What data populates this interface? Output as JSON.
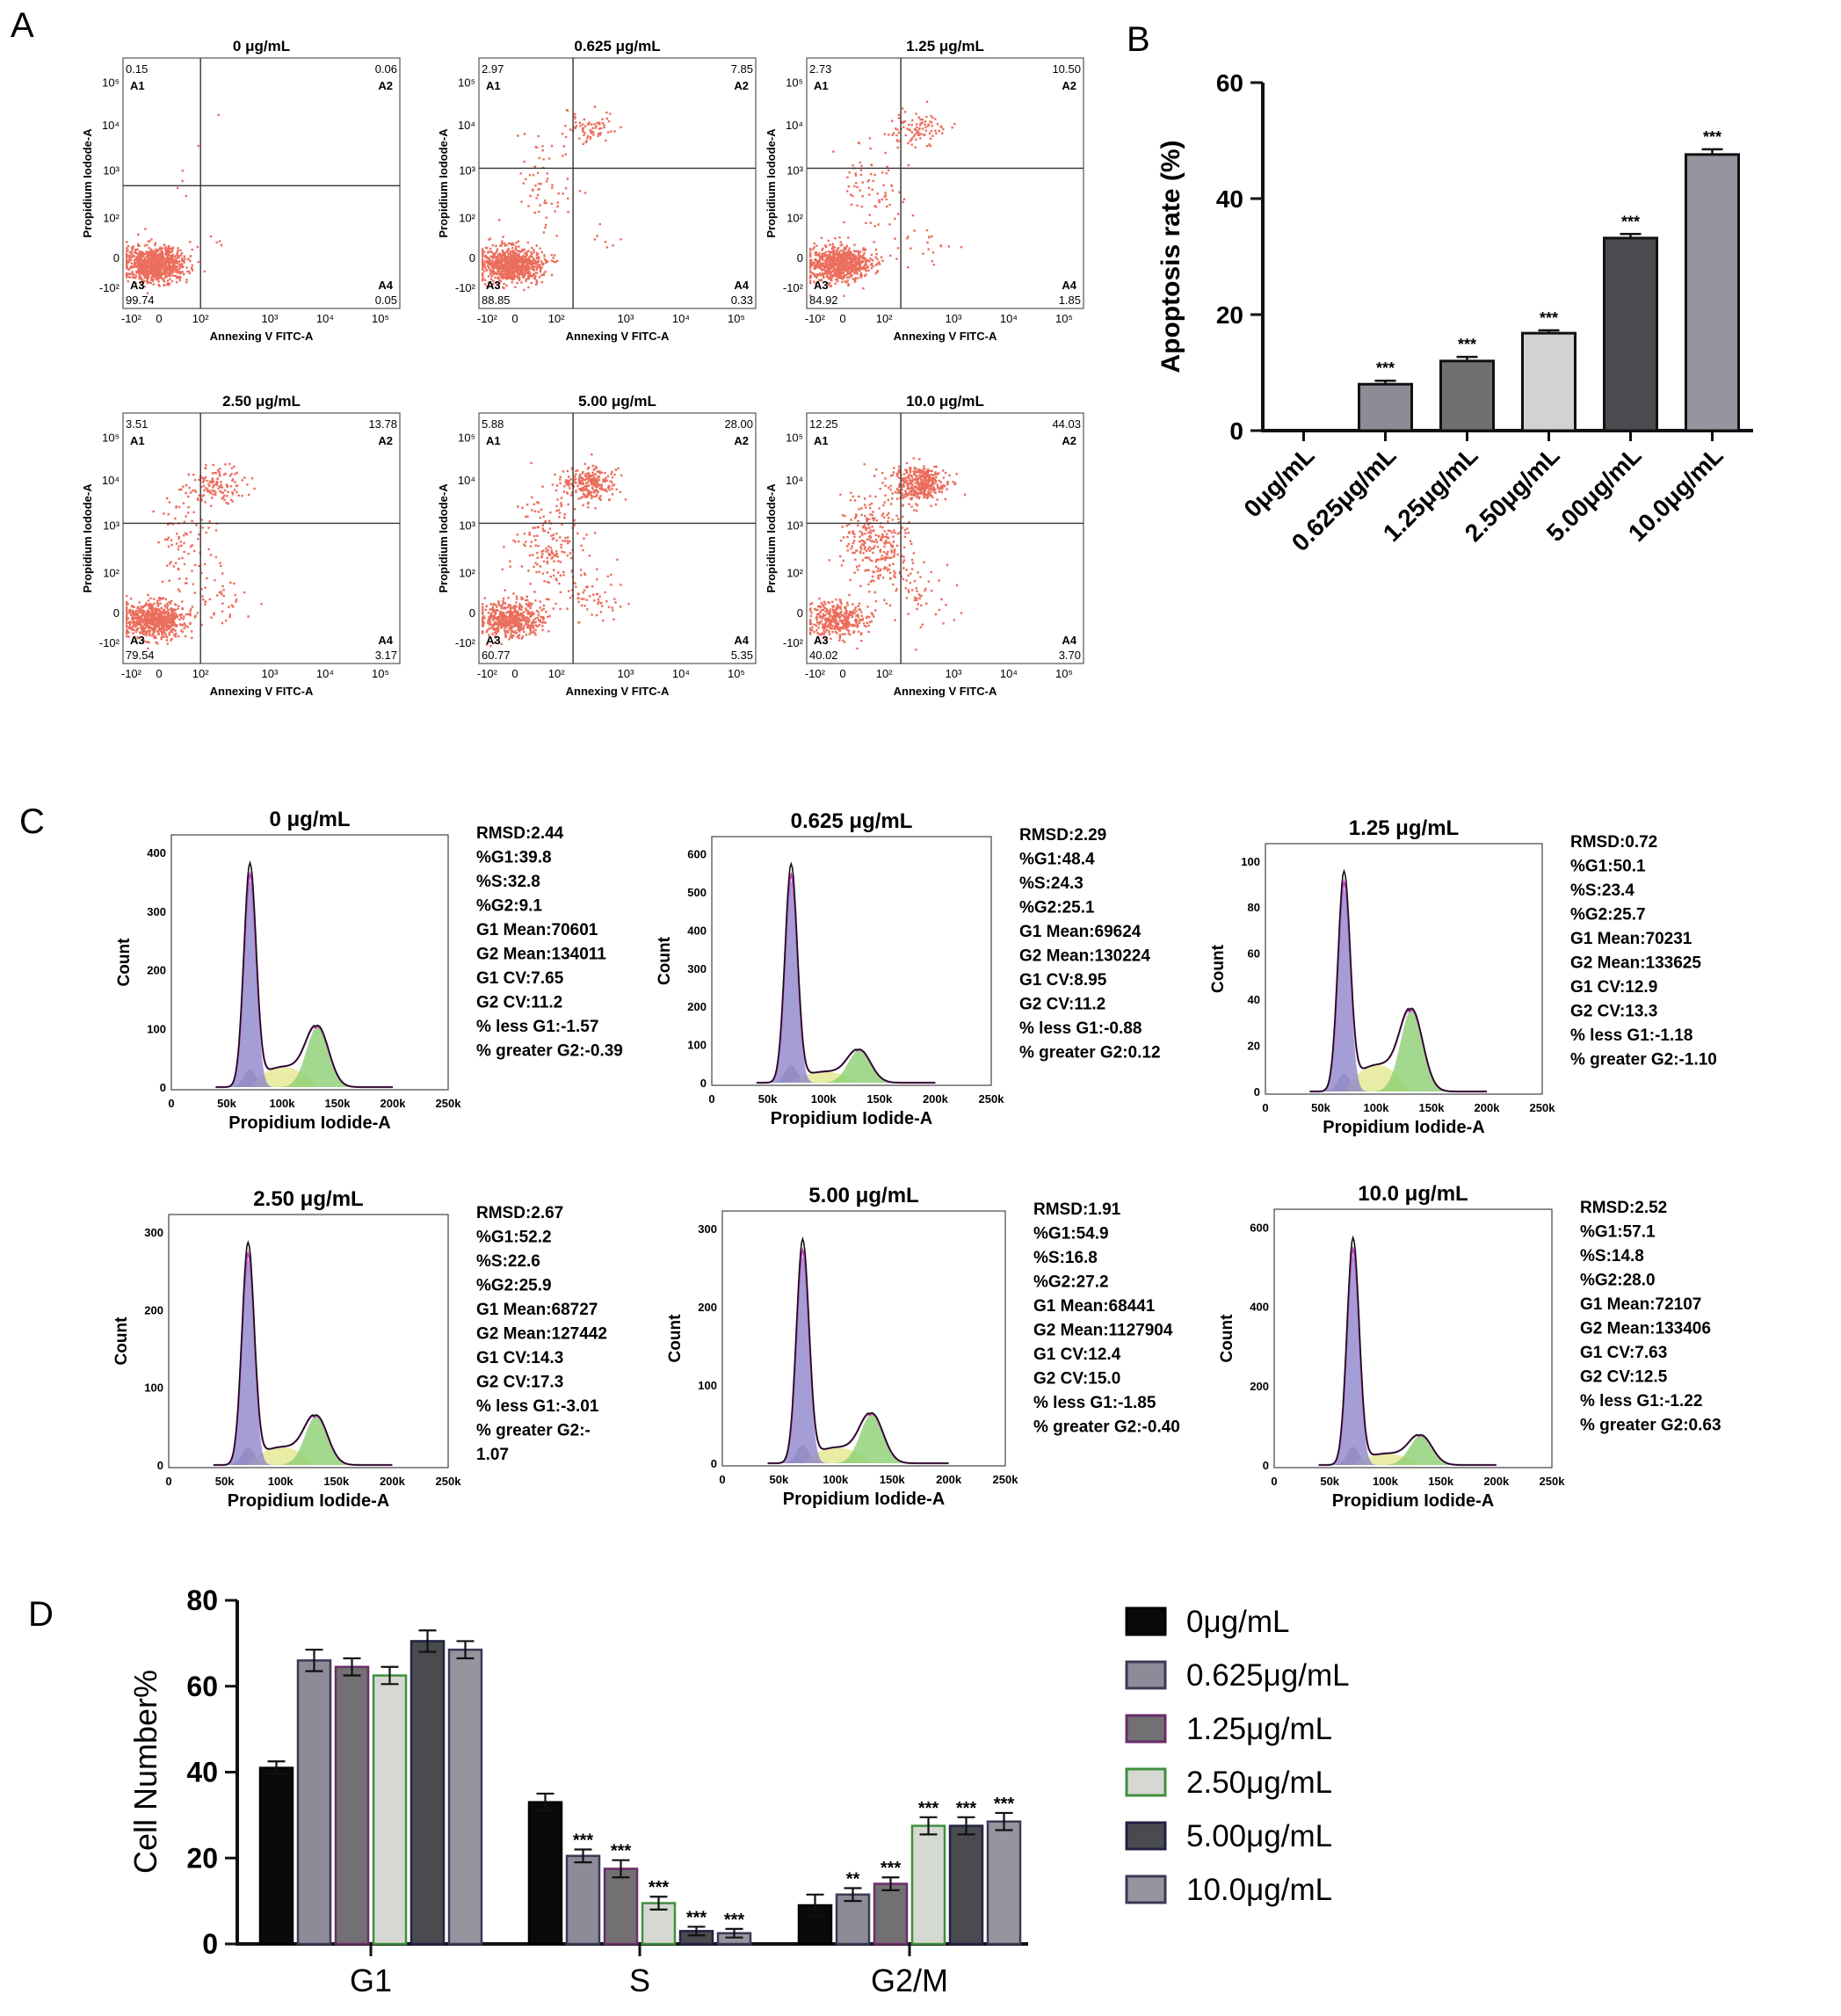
{
  "panel_labels": {
    "a": "A",
    "b": "B",
    "c": "C",
    "d": "D"
  },
  "scatter_panels": [
    {
      "title": "0 μg/mL",
      "q1": "0.15",
      "q2": "0.06",
      "q3": "99.74",
      "q4": "0.05"
    },
    {
      "title": "0.625 μg/mL",
      "q1": "2.97",
      "q2": "7.85",
      "q3": "88.85",
      "q4": "0.33"
    },
    {
      "title": "1.25 μg/mL",
      "q1": "2.73",
      "q2": "10.50",
      "q3": "84.92",
      "q4": "1.85"
    },
    {
      "title": "2.50 μg/mL",
      "q1": "3.51",
      "q2": "13.78",
      "q3": "79.54",
      "q4": "3.17"
    },
    {
      "title": "5.00 μg/mL",
      "q1": "5.88",
      "q2": "28.00",
      "q3": "60.77",
      "q4": "5.35"
    },
    {
      "title": "10.0 μg/mL",
      "q1": "12.25",
      "q2": "44.03",
      "q3": "40.02",
      "q4": "3.70"
    }
  ],
  "scatter_common": {
    "xlabel": "Annexing V FITC-A",
    "ylabel": "Propidium Iodode-A",
    "quadrants": [
      "A1",
      "A2",
      "A3",
      "A4"
    ],
    "x_ticks": [
      "-10²",
      "0",
      "10²",
      "10³",
      "10⁴",
      "10⁵"
    ],
    "y_ticks": [
      "10⁵",
      "10⁴",
      "10³",
      "10²",
      "0",
      "-10²"
    ]
  },
  "histogram_panels": [
    {
      "title": "0 μg/mL",
      "ymax": 400,
      "yticks": [
        "0",
        "100",
        "200",
        "300",
        "400"
      ],
      "stats": [
        "RMSD:2.44",
        "%G1:39.8",
        "%S:32.8",
        "%G2:9.1",
        "G1 Mean:70601",
        "G2 Mean:134011",
        "G1 CV:7.65",
        "G2 CV:11.2",
        "% less G1:-1.57",
        "% greater G2:-0.39"
      ]
    },
    {
      "title": "0.625 μg/mL",
      "ymax": 600,
      "yticks": [
        "0",
        "100",
        "200",
        "300",
        "400",
        "500",
        "600"
      ],
      "stats": [
        "RMSD:2.29",
        "%G1:48.4",
        "%S:24.3",
        "%G2:25.1",
        "G1 Mean:69624",
        "G2 Mean:130224",
        "G1 CV:8.95",
        "G2 CV:11.2",
        "% less G1:-0.88",
        "% greater G2:0.12"
      ]
    },
    {
      "title": "1.25 μg/mL",
      "ymax": 100,
      "yticks": [
        "0",
        "20",
        "40",
        "60",
        "80",
        "100"
      ],
      "stats": [
        "RMSD:0.72",
        "%G1:50.1",
        "%S:23.4",
        "%G2:25.7",
        "G1 Mean:70231",
        "G2 Mean:133625",
        "G1 CV:12.9",
        "G2 CV:13.3",
        "% less G1:-1.18",
        "% greater G2:-1.10"
      ]
    },
    {
      "title": "2.50 μg/mL",
      "ymax": 300,
      "yticks": [
        "0",
        "100",
        "200",
        "300"
      ],
      "stats": [
        "RMSD:2.67",
        "%G1:52.2",
        "%S:22.6",
        "%G2:25.9",
        "G1 Mean:68727",
        "G2 Mean:127442",
        "G1 CV:14.3",
        "G2 CV:17.3",
        "% less G1:-3.01",
        "% greater G2:-",
        "1.07"
      ]
    },
    {
      "title": "5.00 μg/mL",
      "ymax": 300,
      "yticks": [
        "0",
        "100",
        "200",
        "300"
      ],
      "stats": [
        "RMSD:1.91",
        "%G1:54.9",
        "%S:16.8",
        "%G2:27.2",
        "G1 Mean:68441",
        "G2 Mean:1127904",
        "G1 CV:12.4",
        "G2 CV:15.0",
        "% less G1:-1.85",
        "% greater G2:-0.40"
      ]
    },
    {
      "title": "10.0 μg/mL",
      "ymax": 600,
      "yticks": [
        "0",
        "200",
        "400",
        "600"
      ],
      "stats": [
        "RMSD:2.52",
        "%G1:57.1",
        "%S:14.8",
        "%G2:28.0",
        "G1 Mean:72107",
        "G2 Mean:133406",
        "G1 CV:7.63",
        "G2 CV:12.5",
        "% less G1:-1.22",
        "% greater G2:0.63"
      ]
    }
  ],
  "histogram_common": {
    "xlabel": "Propidium Iodide-A",
    "ylabel": "Count",
    "x_ticks": [
      "0",
      "50k",
      "100k",
      "150k",
      "200k",
      "250k"
    ]
  },
  "chart_data": [
    {
      "id": "B",
      "type": "bar",
      "title": "",
      "xlabel": "",
      "ylabel": "Apoptosis rate  (%)",
      "ylim": [
        0,
        60
      ],
      "yticks": [
        0,
        20,
        40,
        60
      ],
      "categories": [
        "0μg/mL",
        "0.625μg/mL",
        "1.25μg/mL",
        "2.50μg/mL",
        "5.00μg/mL",
        "10.0μg/mL"
      ],
      "values": [
        0,
        8,
        12,
        16.8,
        33.2,
        47.6
      ],
      "errors": [
        0,
        0.6,
        0.7,
        0.5,
        0.7,
        0.9
      ],
      "significance": [
        "",
        "***",
        "***",
        "***",
        "***",
        "***"
      ],
      "colors": [
        "#ffffff",
        "#8c8b96",
        "#707070",
        "#d2d3d0",
        "#4a4b4f",
        "#97949e"
      ]
    },
    {
      "id": "D",
      "type": "bar",
      "title": "",
      "xlabel": "",
      "ylabel": "Cell Number%",
      "ylim": [
        0,
        80
      ],
      "yticks": [
        0,
        20,
        40,
        60,
        80
      ],
      "categories": [
        "G1",
        "S",
        "G2/M"
      ],
      "legend_position": "right",
      "series": [
        {
          "name": "0μg/mL",
          "values": [
            41,
            33,
            9
          ],
          "errors": [
            1.5,
            2,
            2.5
          ],
          "sig": [
            "",
            "",
            ""
          ],
          "fill": "#0a0a0a",
          "stroke": "#000000"
        },
        {
          "name": "0.625μg/mL",
          "values": [
            66,
            20.5,
            11.5
          ],
          "errors": [
            2.5,
            1.5,
            1.5
          ],
          "sig": [
            "",
            "***",
            "**"
          ],
          "fill": "#8d8b98",
          "stroke": "#3a3a55"
        },
        {
          "name": "1.25μg/mL",
          "values": [
            64.5,
            17.5,
            14
          ],
          "errors": [
            2,
            2,
            1.5
          ],
          "sig": [
            "",
            "***",
            "***"
          ],
          "fill": "#727072",
          "stroke": "#6b2d6b"
        },
        {
          "name": "2.50μg/mL",
          "values": [
            62.5,
            9.5,
            27.5
          ],
          "errors": [
            2,
            1.5,
            2
          ],
          "sig": [
            "",
            "***",
            "***"
          ],
          "fill": "#d6d8d2",
          "stroke": "#3f8f3f"
        },
        {
          "name": "5.00μg/mL",
          "values": [
            70.5,
            3,
            27.5
          ],
          "errors": [
            2.5,
            1,
            2
          ],
          "sig": [
            "",
            "***",
            "***"
          ],
          "fill": "#4a4b4f",
          "stroke": "#222244"
        },
        {
          "name": "10.0μg/mL",
          "values": [
            68.5,
            2.5,
            28.5
          ],
          "errors": [
            2,
            1,
            2
          ],
          "sig": [
            "",
            "***",
            "***"
          ],
          "fill": "#97949f",
          "stroke": "#3a3a55"
        }
      ]
    }
  ]
}
